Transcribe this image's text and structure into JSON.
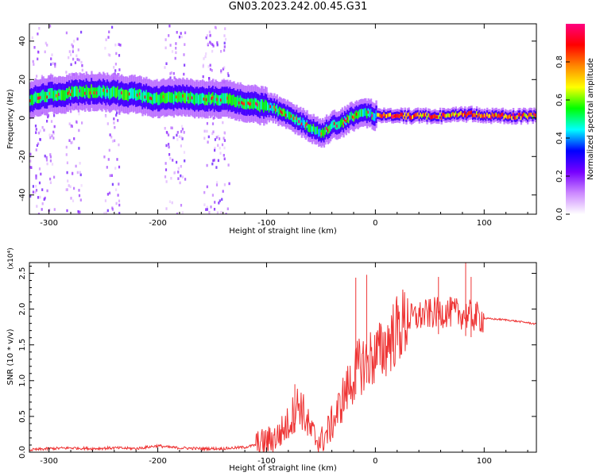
{
  "figure": {
    "title": "GN03.2023.242.00.45.G31"
  },
  "chart_data": [
    {
      "type": "heatmap",
      "xlabel": "Height of straight line (km)",
      "ylabel": "Frequency (Hz)",
      "xlim": [
        -318,
        148
      ],
      "ylim": [
        -50,
        49
      ],
      "xticks": [
        -300,
        -200,
        -100,
        0,
        100
      ],
      "yticks": [
        -40,
        -20,
        0,
        20,
        40
      ],
      "xtick_labels": [
        "-300",
        "-200",
        "-100",
        "0",
        "100"
      ],
      "ytick_labels": [
        "-40",
        "-20",
        "0",
        "20",
        "40"
      ],
      "colorbar": {
        "label": "Normalized spectral amplitude",
        "range": [
          0.0,
          1.0
        ],
        "ticks": [
          0.0,
          0.2,
          0.4,
          0.6,
          0.8
        ],
        "tick_labels": [
          "0.0",
          "0.2",
          "0.4",
          "0.6",
          "0.8"
        ],
        "colormap": [
          "#ffffff",
          "#cc88ff",
          "#7700ff",
          "#0000ff",
          "#00ffff",
          "#00ff00",
          "#ffff00",
          "#ff8800",
          "#ff0000",
          "#ff0080"
        ]
      },
      "ridge": {
        "x": [
          -315,
          -300,
          -280,
          -260,
          -240,
          -220,
          -200,
          -180,
          -160,
          -140,
          -120,
          -100,
          -90,
          -80,
          -70,
          -60,
          -55,
          -50,
          -45,
          -40,
          -35,
          -30,
          -25,
          -20,
          -15,
          -10,
          -5,
          0,
          20,
          40,
          60,
          80,
          90,
          100,
          120,
          148
        ],
        "y": [
          10,
          12,
          13,
          14,
          13,
          12,
          10,
          11,
          10,
          10,
          8,
          6,
          4,
          1,
          -2,
          -5,
          -7,
          -8,
          -6,
          -4,
          -3,
          -2,
          0,
          1,
          2,
          3,
          2,
          1,
          1,
          1,
          1,
          2,
          2,
          1,
          1,
          1
        ]
      },
      "noise_bands_x": [
        [
          -318,
          -295
        ],
        [
          -285,
          -270
        ],
        [
          -250,
          -235
        ],
        [
          -195,
          -175
        ],
        [
          -160,
          -135
        ]
      ]
    },
    {
      "type": "line",
      "xlabel": "Height of straight line (km)",
      "ylabel": "SNR (10 * v/v)",
      "yscale_label": "(x10⁴)",
      "xlim": [
        -318,
        148
      ],
      "ylim": [
        0.0,
        2.65
      ],
      "xticks": [
        -300,
        -200,
        -100,
        0,
        100
      ],
      "yticks": [
        0.0,
        0.5,
        1.0,
        1.5,
        2.0,
        2.5
      ],
      "xtick_labels": [
        "-300",
        "-200",
        "-100",
        "0",
        "100"
      ],
      "ytick_labels": [
        "0.0",
        "0.5",
        "1.0",
        "1.5",
        "2.0",
        "2.5"
      ],
      "color": "#ee3333",
      "series": [
        {
          "x": [
            -318,
            -300,
            -280,
            -260,
            -240,
            -220,
            -200,
            -190,
            -180,
            -160,
            -140,
            -120,
            -110,
            -100,
            -90,
            -80,
            -75,
            -70,
            -65,
            -60,
            -55,
            -50,
            -45,
            -40,
            -35,
            -30,
            -25,
            -20,
            -15,
            -10,
            -5,
            0,
            5,
            10,
            15,
            20,
            25,
            30,
            35,
            40,
            45,
            50,
            55,
            60,
            65,
            70,
            75,
            80,
            85,
            90,
            95,
            100,
            110,
            120,
            130,
            140,
            148
          ],
          "y": [
            0.03,
            0.05,
            0.06,
            0.05,
            0.06,
            0.05,
            0.09,
            0.07,
            0.06,
            0.05,
            0.05,
            0.07,
            0.1,
            0.15,
            0.22,
            0.4,
            0.55,
            0.7,
            0.5,
            0.3,
            0.2,
            0.15,
            0.25,
            0.4,
            0.55,
            0.75,
            0.9,
            1.05,
            1.2,
            1.25,
            1.3,
            1.35,
            1.4,
            1.5,
            1.62,
            1.7,
            1.78,
            1.85,
            1.88,
            1.9,
            1.92,
            1.93,
            1.95,
            1.95,
            1.96,
            1.95,
            1.94,
            1.93,
            1.92,
            1.9,
            1.88,
            1.87,
            1.86,
            1.85,
            1.83,
            1.81,
            1.79
          ]
        }
      ],
      "spikes": [
        {
          "x": -74,
          "y": 0.95
        },
        {
          "x": -18,
          "y": 2.44
        },
        {
          "x": -8,
          "y": 2.48
        },
        {
          "x": 58,
          "y": 2.45
        },
        {
          "x": 83,
          "y": 2.65
        },
        {
          "x": 88,
          "y": 2.45
        }
      ]
    }
  ]
}
